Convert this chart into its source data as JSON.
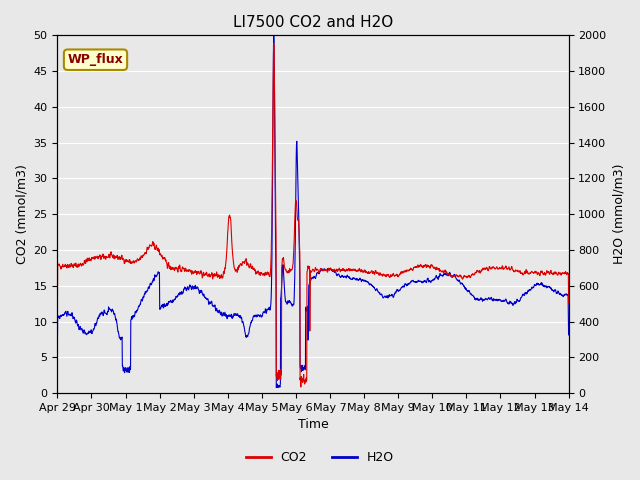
{
  "title": "LI7500 CO2 and H2O",
  "xlabel": "Time",
  "ylabel_left": "CO2 (mmol/m3)",
  "ylabel_right": "H2O (mmol/m3)",
  "annotation_text": "WP_flux",
  "annotation_bg": "#ffffcc",
  "annotation_border": "#aa8800",
  "annotation_text_color": "#880000",
  "co2_color": "#dd0000",
  "h2o_color": "#0000cc",
  "background_color": "#e8e8e8",
  "plot_bg": "#e8e8e8",
  "ylim_left": [
    0,
    50
  ],
  "ylim_right": [
    0,
    2000
  ],
  "yticks_left": [
    0,
    5,
    10,
    15,
    20,
    25,
    30,
    35,
    40,
    45,
    50
  ],
  "yticks_right": [
    0,
    200,
    400,
    600,
    800,
    1000,
    1200,
    1400,
    1600,
    1800,
    2000
  ],
  "xtick_labels": [
    "Apr 29",
    "Apr 30",
    "May 1",
    "May 2",
    "May 3",
    "May 4",
    "May 5",
    "May 6",
    "May 7",
    "May 8",
    "May 9",
    "May 10",
    "May 11",
    "May 12",
    "May 13",
    "May 14"
  ],
  "title_fontsize": 11,
  "axis_fontsize": 9,
  "tick_fontsize": 8,
  "legend_fontsize": 9,
  "grid_color": "#ffffff",
  "line_width": 0.8
}
